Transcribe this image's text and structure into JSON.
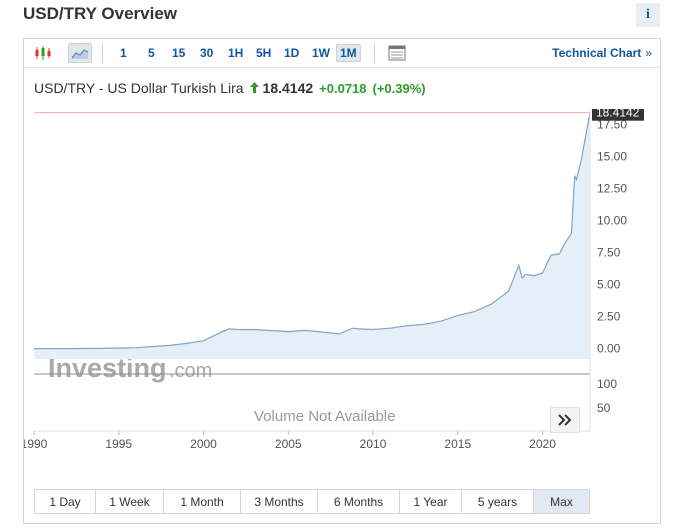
{
  "page": {
    "title": "USD/TRY Overview",
    "info_label": "i"
  },
  "toolbar": {
    "intervals": [
      "1",
      "5",
      "15",
      "30",
      "1H",
      "5H",
      "1D",
      "1W",
      "1M"
    ],
    "active_interval": "1M",
    "technical_chart_label": "Technical Chart",
    "technical_chart_chevron": "»"
  },
  "quote": {
    "name": "USD/TRY - US Dollar Turkish Lira",
    "price": "18.4142",
    "change": "+0.0718",
    "change_pct": "(+0.39%)",
    "direction": "up"
  },
  "chart": {
    "watermark_main": "Investing",
    "watermark_suffix": ".com",
    "volume_text": "Volume Not Available",
    "last_price_label": "18.4142",
    "nav_chevron": "»"
  },
  "chart_data": {
    "type": "area",
    "x": [
      1990,
      1992,
      1994,
      1996,
      1998,
      1999,
      2000,
      2001,
      2001.5,
      2002,
      2003,
      2004,
      2005,
      2006,
      2007,
      2008,
      2008.8,
      2009.2,
      2010,
      2011,
      2012,
      2013,
      2014,
      2015,
      2016,
      2017,
      2018,
      2018.6,
      2018.8,
      2019,
      2019.5,
      2020,
      2020.5,
      2021,
      2021.3,
      2021.7,
      2021.9,
      2022,
      2022.3,
      2022.6,
      2022.8
    ],
    "values": [
      0.01,
      0.01,
      0.03,
      0.08,
      0.26,
      0.42,
      0.63,
      1.26,
      1.55,
      1.5,
      1.49,
      1.42,
      1.34,
      1.43,
      1.3,
      1.16,
      1.6,
      1.55,
      1.5,
      1.6,
      1.8,
      1.9,
      2.15,
      2.6,
      2.9,
      3.5,
      4.5,
      6.5,
      5.5,
      5.8,
      5.7,
      5.9,
      7.3,
      7.4,
      8.2,
      9.0,
      13.5,
      13.2,
      14.8,
      17.0,
      18.4142
    ],
    "xlim": [
      1990,
      2022.8
    ],
    "xticks": [
      "1990",
      "1995",
      "2000",
      "2005",
      "2010",
      "2015",
      "2020"
    ],
    "ylim": [
      -0.8,
      18.7
    ],
    "yticks": [
      "0.00",
      "2.50",
      "5.00",
      "7.50",
      "10.00",
      "12.50",
      "15.00",
      "17.50"
    ],
    "volume_ticks": [
      "100",
      "50"
    ],
    "last_value": 18.4142,
    "colors": {
      "line": "#7fa6c8",
      "fill": "#e6eef7",
      "last_line": "#f0a8a8",
      "price_tag": "#333333",
      "up": "#2a9d2a",
      "link": "#1256a0"
    }
  },
  "range_buttons": [
    "1 Day",
    "1 Week",
    "1 Month",
    "3 Months",
    "6 Months",
    "1 Year",
    "5 years",
    "Max"
  ],
  "active_range": "Max"
}
